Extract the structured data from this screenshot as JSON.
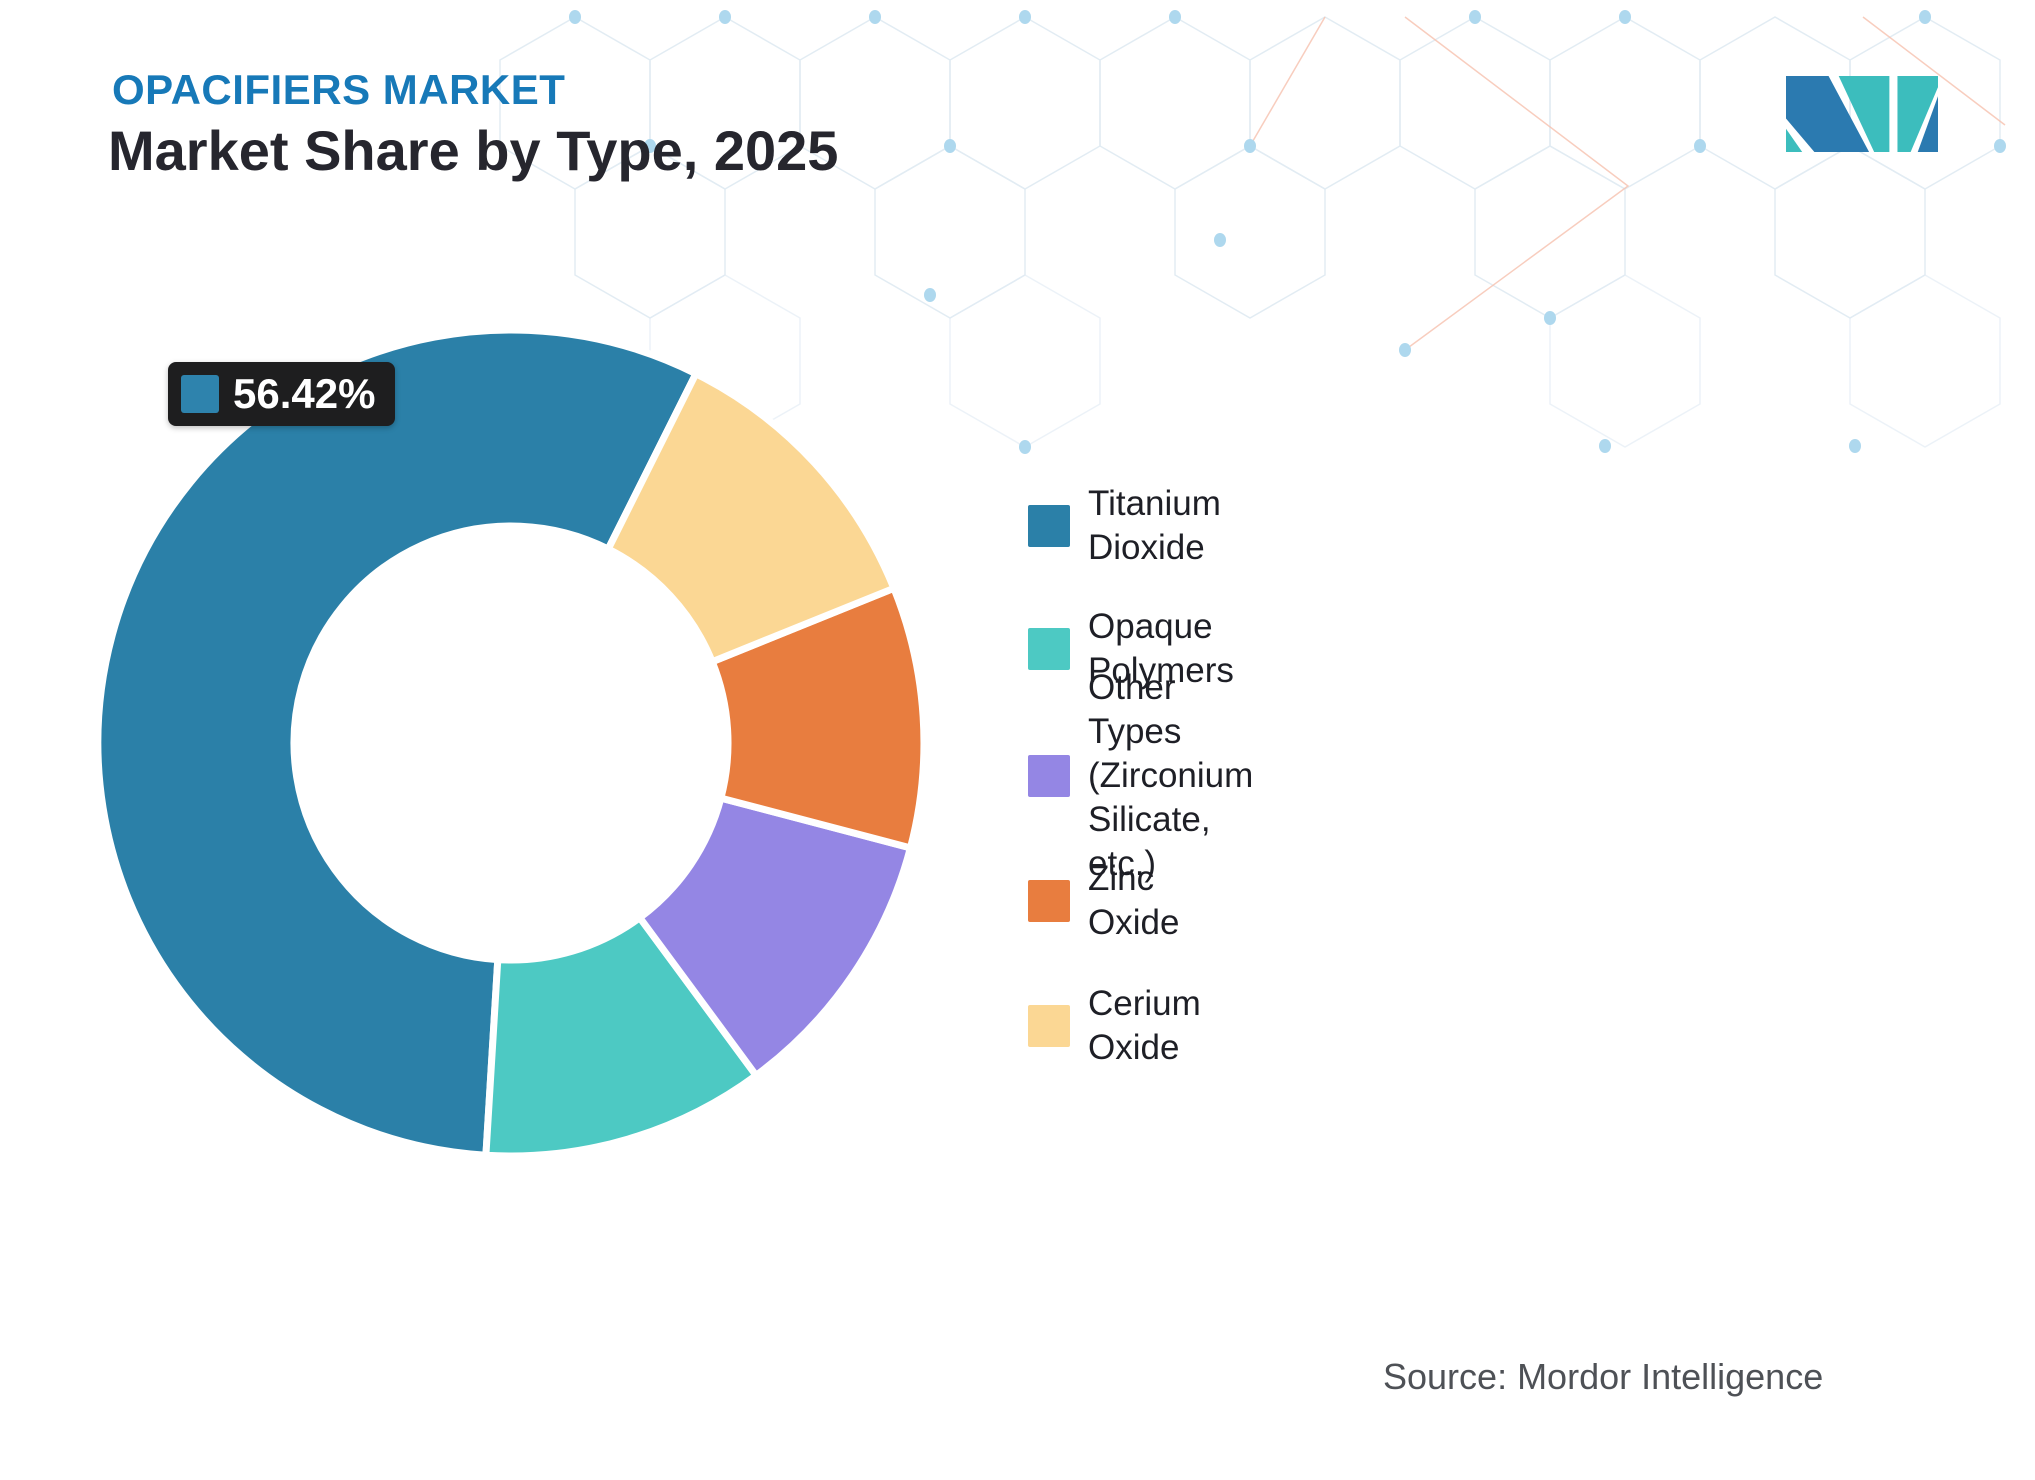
{
  "header": {
    "eyebrow": "OPACIFIERS MARKET",
    "title": "Market Share by Type, 2025"
  },
  "callout": {
    "value": "56.42%",
    "swatch_color": "#2E83AD"
  },
  "source": {
    "text": "Source: Mordor Intelligence"
  },
  "logo": {
    "name": "mordor-intelligence-logo",
    "blue": "#2B7AB0",
    "teal": "#3CBDBD"
  },
  "chart_data": {
    "type": "pie",
    "subtype": "donut",
    "title": "Opacifiers Market - Market Share by Type, 2025",
    "legend_position": "right",
    "rotation_deg": 26.6,
    "direction": "counterclockwise",
    "labeled_value": "56.42%",
    "values_note": "Only the 56.42% slice is labeled in the image; other values estimated from arc angles",
    "slices": [
      {
        "id": "titanium-dioxide",
        "name": "Titanium Dioxide",
        "value": 56.42,
        "color": "#2B80A8",
        "label": "56.42%"
      },
      {
        "id": "opaque-polymers",
        "name": "Opaque Polymers",
        "value": 11.08,
        "color": "#4DC9C3",
        "label": ""
      },
      {
        "id": "other-types",
        "name": "Other Types (Zirconium Silicate, etc.)",
        "value": 10.8,
        "color": "#9486E4",
        "label": ""
      },
      {
        "id": "zinc-oxide",
        "name": "Zinc Oxide",
        "value": 10.2,
        "color": "#E87D3F",
        "label": ""
      },
      {
        "id": "cerium-oxide",
        "name": "Cerium Oxide",
        "value": 11.5,
        "color": "#FBD794",
        "label": ""
      }
    ]
  }
}
